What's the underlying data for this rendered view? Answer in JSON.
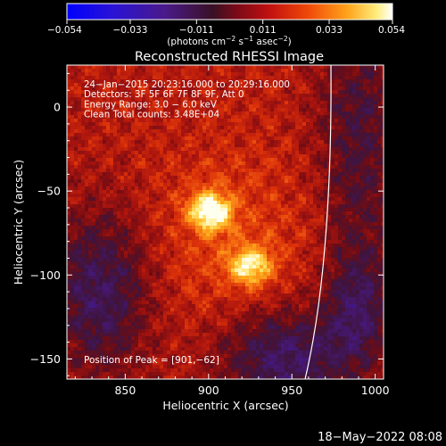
{
  "colorbar": {
    "ticks": [
      "−0.054",
      "−0.033",
      "−0.011",
      "0.011",
      "0.033",
      "0.054"
    ],
    "tick_values": [
      -0.054,
      -0.033,
      -0.011,
      0.011,
      0.033,
      0.054
    ],
    "range": [
      -0.054,
      0.054
    ],
    "unit_label": "(photons cm",
    "unit_sup1": "−2",
    "unit_mid1": " s",
    "unit_sup2": "−1",
    "unit_mid2": " asec",
    "unit_sup3": "−2",
    "unit_end": ")"
  },
  "chart_data": {
    "type": "heatmap",
    "title": "Reconstructed RHESSI Image",
    "xlabel": "Heliocentric X (arcsec)",
    "ylabel": "Heliocentric Y (arcsec)",
    "xlim": [
      815,
      1005
    ],
    "ylim": [
      -162,
      25
    ],
    "xticks": [
      "850",
      "900",
      "950",
      "1000"
    ],
    "xtick_values": [
      850,
      900,
      950,
      1000
    ],
    "yticks": [
      "0",
      "−50",
      "−100",
      "−150"
    ],
    "ytick_values": [
      0,
      -50,
      -100,
      -150
    ],
    "annotations": [
      "24−Jan−2015 20:23:16.000 to 20:29:16.000",
      "Detectors: 3F 5F 6F 7F 8F 9F, Att 0",
      "Energy Range: 3.0 − 6.0 keV",
      "Clean     Total counts: 3.48E+04"
    ],
    "peak_label": "Position of Peak = [901,−62]",
    "peak": [
      901,
      -62
    ],
    "sources": [
      {
        "x": 901,
        "y": -62,
        "peak": 0.054
      },
      {
        "x": 925,
        "y": -95,
        "peak": 0.045
      }
    ]
  },
  "footer": {
    "timestamp": "18−May−2022 08:08"
  },
  "colors": {
    "background": "#000000",
    "foreground": "#ffffff"
  }
}
